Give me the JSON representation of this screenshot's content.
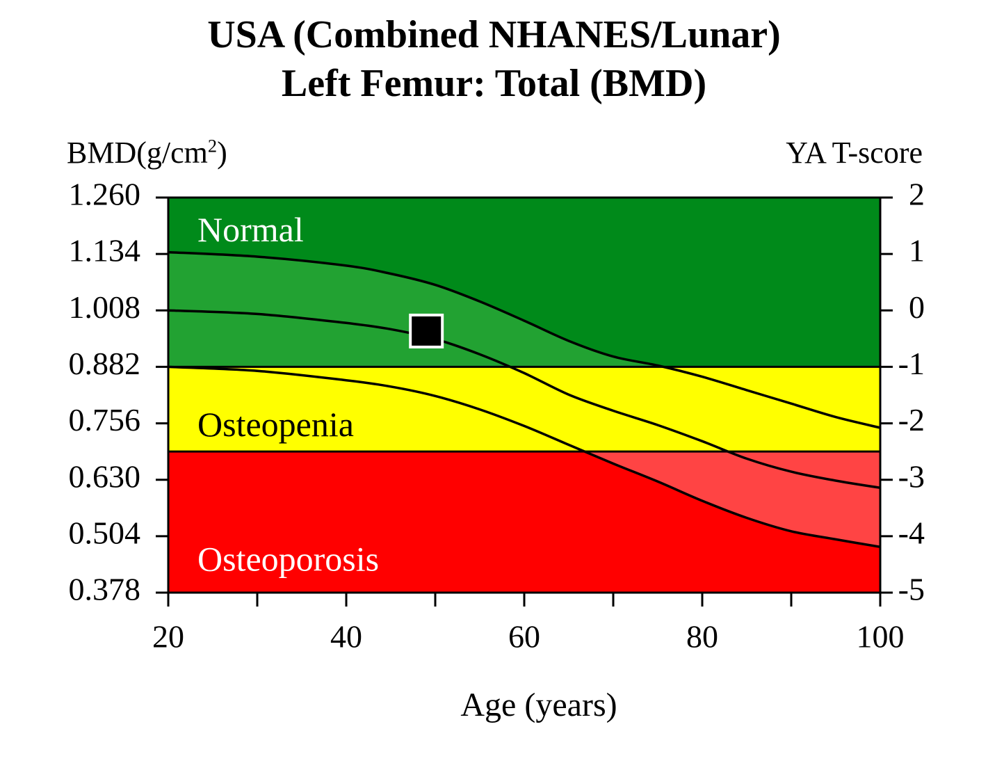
{
  "chart_data": {
    "type": "line",
    "title": "USA (Combined NHANES/Lunar)",
    "subtitle": "Left Femur: Total (BMD)",
    "xlabel": "Age (years)",
    "ylabel": "BMD",
    "ylabel_unit": "(g/cm",
    "ylabel_unit_sup": "2",
    "ylabel_unit_close": ")",
    "ylabel_right": "YA T-score",
    "xlim": [
      20,
      100
    ],
    "ylim": [
      0.378,
      1.26
    ],
    "x_ticks": [
      "20",
      "40",
      "60",
      "80",
      "100"
    ],
    "x_ticks_values": [
      20,
      40,
      60,
      80,
      100
    ],
    "x_minor_ticks": [
      30,
      50,
      70,
      90
    ],
    "y_ticks": [
      "1.260",
      "1.134",
      "1.008",
      "0.882",
      "0.756",
      "0.630",
      "0.504",
      "0.378"
    ],
    "y_ticks_values": [
      1.26,
      1.134,
      1.008,
      0.882,
      0.756,
      0.63,
      0.504,
      0.378
    ],
    "y_right_ticks": [
      "2",
      "1",
      "0",
      "-1",
      "-2",
      "-3",
      "-4",
      "-5"
    ],
    "grid": false,
    "zones": [
      {
        "label": "Normal",
        "from": 0.882,
        "to": 1.26,
        "color": "#008a1a",
        "label_color": "#ffffff",
        "label_y": 1.18
      },
      {
        "label": "Osteopenia",
        "from": 0.693,
        "to": 0.882,
        "color": "#ffff00",
        "label_color": "#000000",
        "label_y": 0.745
      },
      {
        "label": "Osteoporosis",
        "from": 0.378,
        "to": 0.693,
        "color": "#ff0000",
        "label_color": "#ffffff",
        "label_y": 0.445
      }
    ],
    "reference_band_colors": {
      "Normal": "#22a232",
      "Osteopenia": "#ffff00",
      "Osteoporosis": "#ff4444"
    },
    "series": [
      {
        "role": "upper",
        "x": [
          20,
          30,
          40,
          45,
          50,
          55,
          60,
          65,
          70,
          75,
          80,
          85,
          90,
          95,
          100
        ],
        "y": [
          1.138,
          1.128,
          1.108,
          1.09,
          1.065,
          1.028,
          0.985,
          0.94,
          0.905,
          0.885,
          0.86,
          0.83,
          0.8,
          0.77,
          0.746
        ]
      },
      {
        "role": "mean",
        "x": [
          20,
          30,
          40,
          45,
          50,
          55,
          60,
          65,
          70,
          75,
          80,
          85,
          90,
          95,
          100
        ],
        "y": [
          1.008,
          1.0,
          0.98,
          0.966,
          0.944,
          0.91,
          0.868,
          0.82,
          0.784,
          0.752,
          0.716,
          0.677,
          0.648,
          0.628,
          0.612
        ]
      },
      {
        "role": "lower",
        "x": [
          20,
          30,
          40,
          45,
          50,
          55,
          60,
          65,
          70,
          75,
          80,
          85,
          90,
          95,
          100
        ],
        "y": [
          0.882,
          0.873,
          0.852,
          0.838,
          0.817,
          0.787,
          0.75,
          0.708,
          0.666,
          0.626,
          0.583,
          0.545,
          0.515,
          0.497,
          0.48
        ]
      }
    ],
    "patient_point": {
      "x": 49,
      "y": 0.962
    }
  }
}
